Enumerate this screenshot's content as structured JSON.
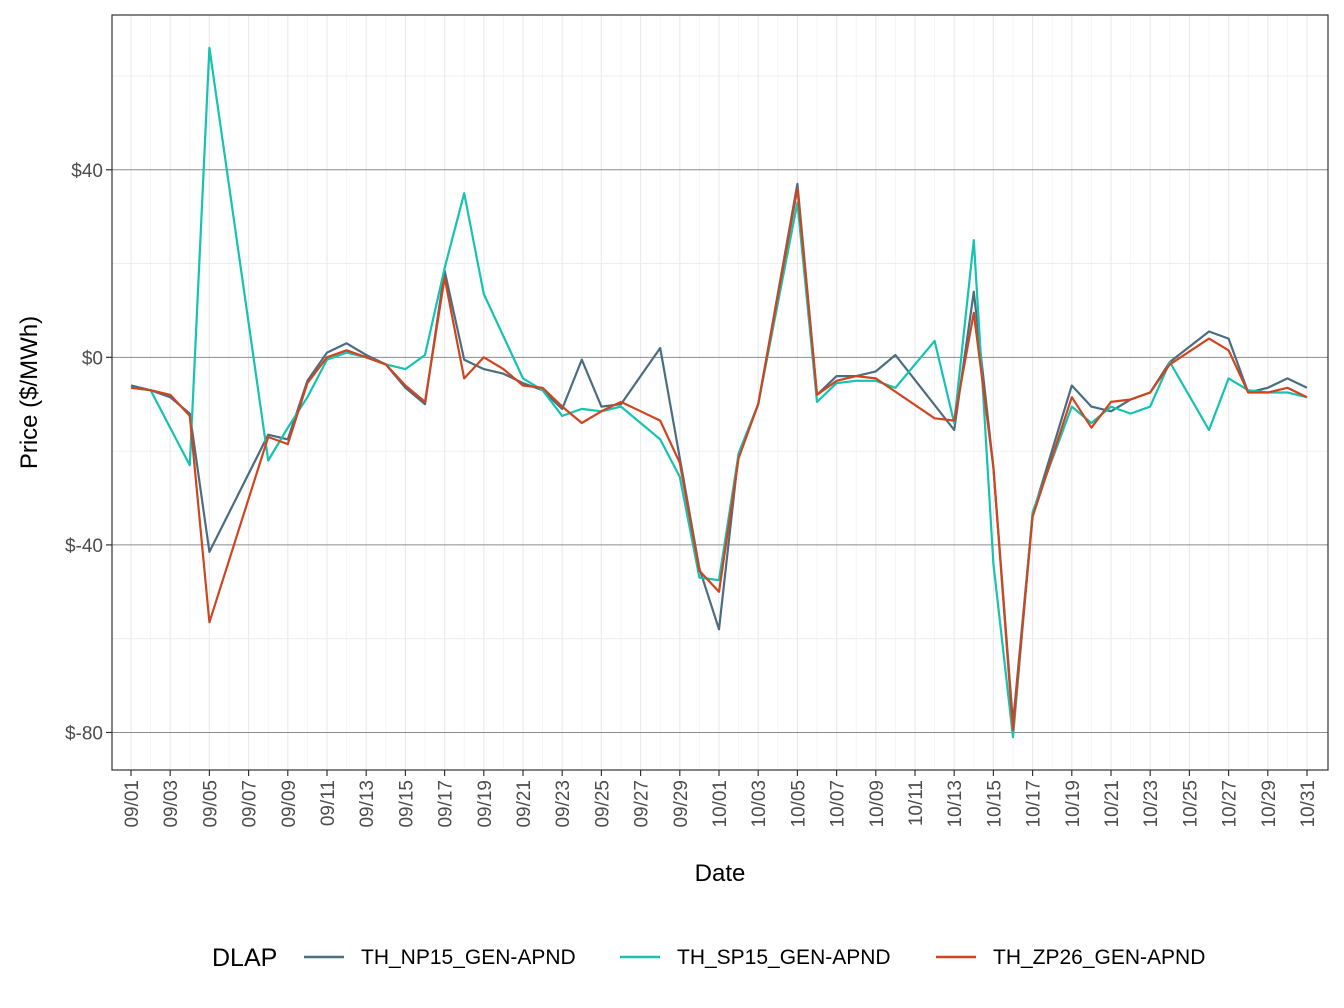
{
  "chart_data": {
    "type": "line",
    "xlabel": "Date",
    "ylabel": "Price ($/MWh)",
    "ylim": [
      -88,
      73
    ],
    "y_ticks": [
      -80,
      -40,
      0,
      40
    ],
    "y_tick_labels": [
      "$-80",
      "$-40",
      "$0",
      "$40"
    ],
    "grid": true,
    "legend_position": "bottom",
    "legend_title": "DLAP",
    "x": [
      "09/01",
      "09/02",
      "09/03",
      "09/04",
      "09/05",
      "09/06",
      "09/07",
      "09/08",
      "09/09",
      "09/10",
      "09/11",
      "09/12",
      "09/13",
      "09/14",
      "09/15",
      "09/16",
      "09/17",
      "09/18",
      "09/19",
      "09/20",
      "09/21",
      "09/22",
      "09/23",
      "09/24",
      "09/25",
      "09/26",
      "09/27",
      "09/28",
      "09/29",
      "09/30",
      "10/01",
      "10/02",
      "10/03",
      "10/04",
      "10/05",
      "10/06",
      "10/07",
      "10/08",
      "10/09",
      "10/10",
      "10/11",
      "10/12",
      "10/13",
      "10/14",
      "10/15",
      "10/16",
      "10/17",
      "10/18",
      "10/19",
      "10/20",
      "10/21",
      "10/22",
      "10/23",
      "10/24",
      "10/25",
      "10/26",
      "10/27",
      "10/28",
      "10/29",
      "10/30",
      "10/31"
    ],
    "x_tick_labels": [
      "09/01",
      "09/03",
      "09/05",
      "09/07",
      "09/09",
      "09/11",
      "09/13",
      "09/15",
      "09/17",
      "09/19",
      "09/21",
      "09/23",
      "09/25",
      "09/27",
      "09/29",
      "10/01",
      "10/03",
      "10/05",
      "10/07",
      "10/09",
      "10/11",
      "10/13",
      "10/15",
      "10/17",
      "10/19",
      "10/21",
      "10/23",
      "10/25",
      "10/27",
      "10/29",
      "10/31"
    ],
    "series": [
      {
        "name": "TH_NP15_GEN-APND",
        "color": "#4c6d80",
        "values": [
          -6,
          -7,
          -8.5,
          -12,
          -41.5,
          null,
          null,
          -16.5,
          -17.5,
          -5,
          1,
          3,
          0.5,
          -1.5,
          -6.5,
          -10,
          18.5,
          -0.5,
          -2.5,
          -3.5,
          -5.5,
          -7,
          -11,
          -0.5,
          -10.5,
          -10,
          null,
          2,
          -21.5,
          -45,
          -58,
          -20.5,
          -10,
          null,
          37,
          -8,
          -4,
          -4,
          -3,
          0.5,
          null,
          null,
          -15.5,
          14,
          -23.5,
          -78,
          -33.5,
          null,
          -6,
          -10.5,
          -11.5,
          -9,
          -7.5,
          -1,
          null,
          5.5,
          4,
          -7.5,
          -6.5,
          -4.5,
          -6.5
        ]
      },
      {
        "name": "TH_SP15_GEN-APND",
        "color": "#14c3b1",
        "values": [
          -6.5,
          -7,
          -15,
          -23,
          66,
          null,
          null,
          -22,
          -15,
          -8.5,
          -0.5,
          1,
          0,
          -1.5,
          -2.5,
          0.5,
          19,
          35,
          13.5,
          null,
          -4.5,
          -7,
          -12.5,
          -11,
          -11.5,
          -10.5,
          null,
          -17.5,
          -25.5,
          -47,
          -47.5,
          -20.5,
          -10,
          null,
          33,
          -9.5,
          -5.5,
          -5,
          -5,
          -6.5,
          null,
          3.5,
          -14,
          25,
          -44,
          -81,
          -33,
          null,
          -10.5,
          -14,
          -10.5,
          -12,
          -10.5,
          -1,
          null,
          -15.5,
          -4.5,
          -7,
          -7.5,
          -7.5,
          -8.5
        ]
      },
      {
        "name": "TH_ZP26_GEN-APND",
        "color": "#cf4520",
        "values": [
          -6.5,
          -7,
          -8,
          -12.5,
          -56.5,
          null,
          null,
          -17,
          -18.5,
          -5.5,
          0,
          1.5,
          0,
          -1.5,
          -6,
          -9.5,
          17,
          -4.5,
          0,
          -2.5,
          -6,
          -6.5,
          -10.5,
          -14,
          -11.5,
          -9.5,
          null,
          -13.5,
          -22.5,
          -45.5,
          -50,
          -21.5,
          -10,
          null,
          36,
          -8,
          -5,
          -4,
          -4.5,
          null,
          null,
          -13,
          -13.5,
          9.5,
          -23.5,
          -79.5,
          -34,
          null,
          -8.5,
          -15,
          -9.5,
          -9,
          -7.5,
          -1.5,
          null,
          4,
          1.5,
          -7.5,
          -7.5,
          -6.5,
          -8.5
        ]
      }
    ]
  }
}
